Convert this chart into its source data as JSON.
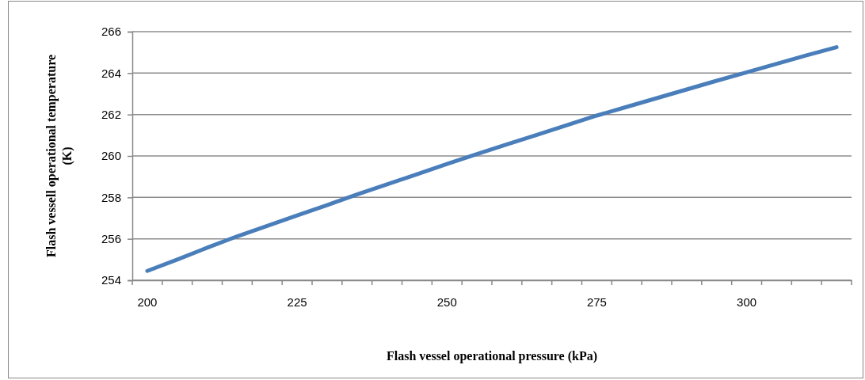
{
  "chart_data": {
    "type": "line",
    "xlabel": "Flash vessel operational pressure (kPa)",
    "ylabel": "Flash vessell operational temperature (K)",
    "categories": [
      "200",
      null,
      null,
      null,
      null,
      "225",
      null,
      null,
      null,
      null,
      "250",
      null,
      null,
      null,
      null,
      "275",
      null,
      null,
      null,
      null,
      "300",
      null,
      null,
      null
    ],
    "series": [
      {
        "color": "#4a7ebb",
        "values": [
          254.45,
          255.0,
          255.57,
          256.12,
          256.62,
          257.13,
          257.63,
          258.14,
          258.63,
          259.12,
          259.61,
          260.09,
          260.56,
          261.02,
          261.49,
          261.95,
          262.37,
          262.79,
          263.21,
          263.63,
          264.04,
          264.45,
          264.86,
          265.25
        ]
      }
    ],
    "ylim": [
      254,
      266
    ],
    "yticks": [
      254,
      256,
      258,
      260,
      262,
      264,
      266
    ],
    "grid": "y",
    "marker": "none",
    "line_style": "solid"
  }
}
